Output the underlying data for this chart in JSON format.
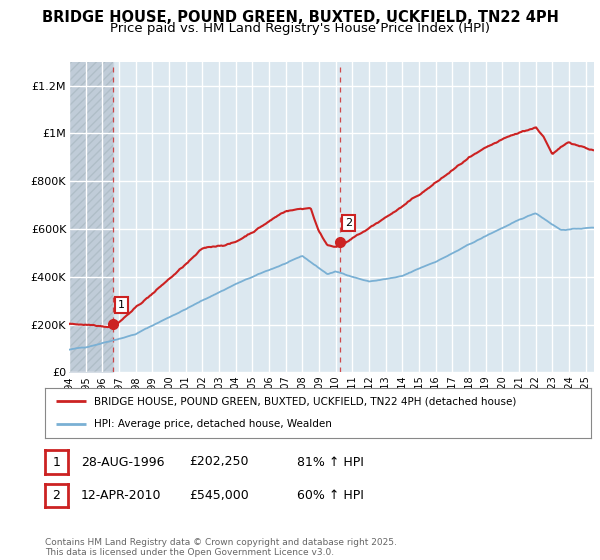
{
  "title": "BRIDGE HOUSE, POUND GREEN, BUXTED, UCKFIELD, TN22 4PH",
  "subtitle": "Price paid vs. HM Land Registry's House Price Index (HPI)",
  "title_fontsize": 10.5,
  "subtitle_fontsize": 9.5,
  "ylim": [
    0,
    1300000
  ],
  "yticks": [
    0,
    200000,
    400000,
    600000,
    800000,
    1000000,
    1200000
  ],
  "ytick_labels": [
    "£0",
    "£200K",
    "£400K",
    "£600K",
    "£800K",
    "£1M",
    "£1.2M"
  ],
  "xmin": 1994,
  "xmax": 2025.5,
  "plot_bg_color": "#dce8f0",
  "grid_color": "#ffffff",
  "hatch_color": "#c0ccd8",
  "sale1_year": 1996.65,
  "sale1_price": 202250,
  "sale2_year": 2010.28,
  "sale2_price": 545000,
  "legend_line1": "BRIDGE HOUSE, POUND GREEN, BUXTED, UCKFIELD, TN22 4PH (detached house)",
  "legend_line2": "HPI: Average price, detached house, Wealden",
  "note1_date": "28-AUG-1996",
  "note1_price": "£202,250",
  "note1_hpi": "81% ↑ HPI",
  "note2_date": "12-APR-2010",
  "note2_price": "£545,000",
  "note2_hpi": "60% ↑ HPI",
  "copyright": "Contains HM Land Registry data © Crown copyright and database right 2025.\nThis data is licensed under the Open Government Licence v3.0.",
  "red_color": "#cc2222",
  "blue_color": "#7ab0d4"
}
